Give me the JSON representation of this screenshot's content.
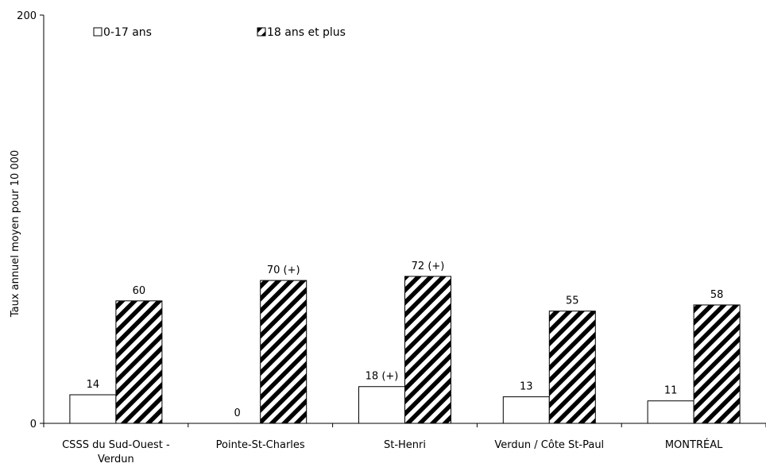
{
  "chart_data": {
    "type": "bar",
    "title": "",
    "xlabel": "",
    "ylabel": "Taux annuel moyen pour 10 000",
    "ylim": [
      0,
      200
    ],
    "y_ticks": [
      0,
      200
    ],
    "y_tick_labels": [
      "0",
      "200"
    ],
    "categories": [
      "CSSS du Sud-Ouest - Verdun",
      "Pointe-St-Charles",
      "St-Henri",
      "Verdun / Côte St-Paul",
      "MONTRÉAL"
    ],
    "category_label_lines": [
      [
        "CSSS du Sud-Ouest -",
        "Verdun"
      ],
      [
        "Pointe-St-Charles"
      ],
      [
        "St-Henri"
      ],
      [
        "Verdun / Côte St-Paul"
      ],
      [
        "MONTRÉAL"
      ]
    ],
    "series": [
      {
        "name": "0-17 ans",
        "values": [
          14,
          0,
          18,
          13,
          11
        ],
        "labels": [
          "14",
          "0",
          "18 (+)",
          "13",
          "11"
        ],
        "fill": "#ffffff"
      },
      {
        "name": "18 ans et plus",
        "values": [
          60,
          70,
          72,
          55,
          58
        ],
        "labels": [
          "60",
          "70 (+)",
          "72 (+)",
          "55",
          "58"
        ],
        "fill": "hatched"
      }
    ],
    "legend_position": "top-left",
    "grid": false
  }
}
